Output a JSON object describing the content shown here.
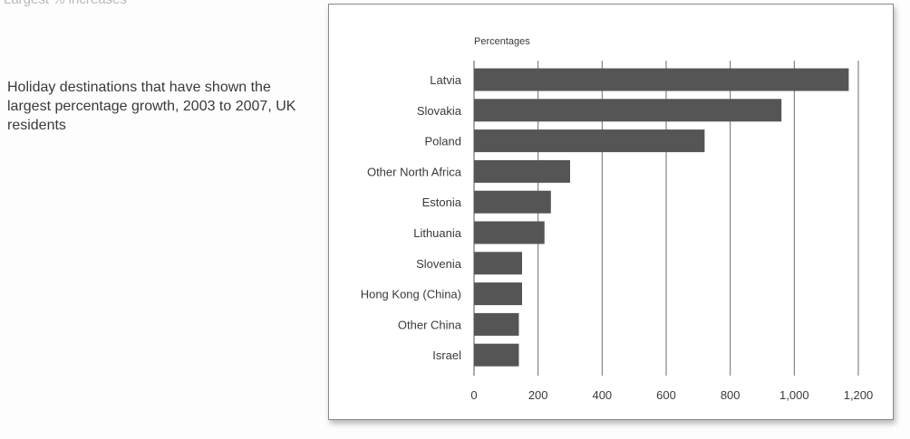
{
  "page": {
    "top_fragment": "Largest % increases",
    "caption": "Holiday destinations that have shown the largest percentage growth, 2003 to 2007, UK residents"
  },
  "chart_data": {
    "type": "bar",
    "orientation": "horizontal",
    "ylabel": "Percentages",
    "categories": [
      "Latvia",
      "Slovakia",
      "Poland",
      "Other North Africa",
      "Estonia",
      "Lithuania",
      "Slovenia",
      "Hong Kong (China)",
      "Other China",
      "Israel"
    ],
    "values": [
      1170,
      960,
      720,
      300,
      240,
      220,
      150,
      150,
      140,
      140
    ],
    "xlim": [
      0,
      1200
    ],
    "ticks": [
      0,
      200,
      400,
      600,
      800,
      1000,
      1200
    ],
    "tick_labels": [
      "0",
      "200",
      "400",
      "600",
      "800",
      "1,000",
      "1,200"
    ],
    "grid": "vertical",
    "colors": {
      "bar": "#555555",
      "grid": "#6e6e6e",
      "text": "#3a3a3a"
    }
  }
}
